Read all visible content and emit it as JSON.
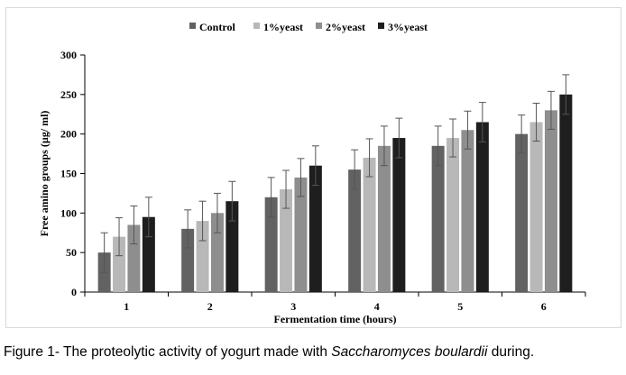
{
  "caption": {
    "prefix": "Figure 1- The proteolytic activity of yogurt made with ",
    "species": "Saccharomyces boulardii",
    "suffix": " during."
  },
  "chart_data": {
    "type": "bar",
    "categories": [
      "1",
      "2",
      "3",
      "4",
      "5",
      "6"
    ],
    "series": [
      {
        "name": "Control",
        "values": [
          50,
          80,
          120,
          155,
          185,
          200
        ],
        "errors": [
          25,
          24,
          25,
          25,
          25,
          24
        ],
        "color": "#626262"
      },
      {
        "name": "1%yeast",
        "values": [
          70,
          90,
          130,
          170,
          195,
          215
        ],
        "errors": [
          24,
          25,
          24,
          24,
          24,
          24
        ],
        "color": "#b8b8b8"
      },
      {
        "name": "2%yeast",
        "values": [
          85,
          100,
          145,
          185,
          205,
          230
        ],
        "errors": [
          24,
          25,
          24,
          25,
          24,
          24
        ],
        "color": "#8e8e8e"
      },
      {
        "name": "3%yeast",
        "values": [
          95,
          115,
          160,
          195,
          215,
          250
        ],
        "errors": [
          25,
          25,
          25,
          25,
          25,
          25
        ],
        "color": "#1e1e1e"
      }
    ],
    "yticks": [
      0,
      50,
      100,
      150,
      200,
      250,
      300
    ],
    "ylim": [
      0,
      300
    ],
    "xlabel": "Fermentation  time (hours)",
    "ylabel": "Free amino groups (µg/ ml)",
    "legend_position": "top",
    "grid": false
  }
}
